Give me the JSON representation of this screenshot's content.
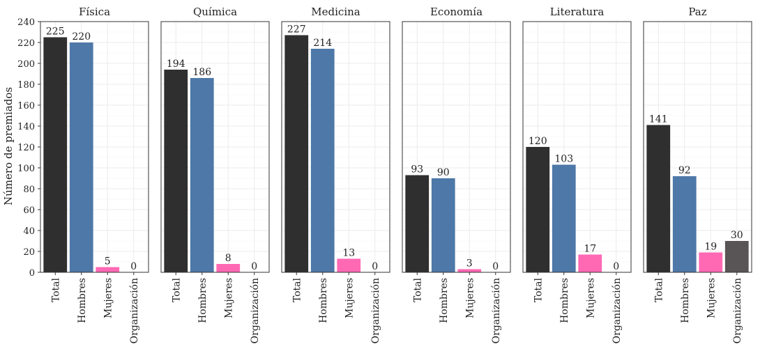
{
  "chart_data": {
    "type": "bar",
    "ylabel": "Número de premiados",
    "ylim": [
      0,
      240
    ],
    "yticks": [
      0,
      20,
      40,
      60,
      80,
      100,
      120,
      140,
      160,
      180,
      200,
      220,
      240
    ],
    "grid": true,
    "categories": [
      "Total",
      "Hombres",
      "Mujeres",
      "Organización"
    ],
    "category_colors": [
      "#2f2f2f",
      "#4d78a8",
      "#ff69b4",
      "#595455"
    ],
    "panels": [
      {
        "title": "Física",
        "values": [
          225,
          220,
          5,
          0
        ]
      },
      {
        "title": "Química",
        "values": [
          194,
          186,
          8,
          0
        ]
      },
      {
        "title": "Medicina",
        "values": [
          227,
          214,
          13,
          0
        ]
      },
      {
        "title": "Economía",
        "values": [
          93,
          90,
          3,
          0
        ]
      },
      {
        "title": "Literatura",
        "values": [
          120,
          103,
          17,
          0
        ]
      },
      {
        "title": "Paz",
        "values": [
          141,
          92,
          19,
          30
        ]
      }
    ]
  }
}
